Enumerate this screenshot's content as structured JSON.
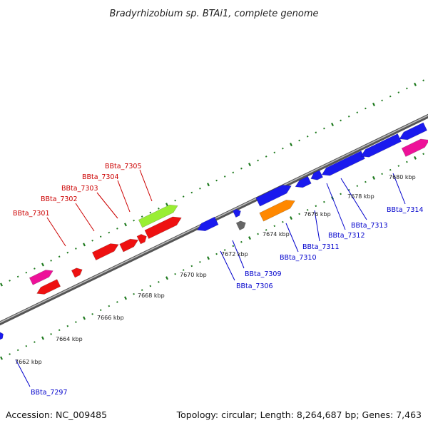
{
  "title": "Bradyrhizobium sp. BTAi1, complete genome",
  "footer": {
    "accession": "Accession: NC_009485",
    "summary": "Topology: circular; Length: 8,264,687 bp; Genes: 7,463"
  },
  "colors": {
    "backbone": "#888888",
    "tick": "#1e7a1e",
    "label_top": "#cc0000",
    "label_bottom": "#0000cc",
    "red": "#ee1111",
    "blue": "#1a1aee",
    "magenta": "#ee1199",
    "green": "#99ee33",
    "orange": "#ff8800",
    "gray": "#666666"
  },
  "scale": {
    "unit": "kbp",
    "labelled_ticks": [
      "7662 kbp",
      "7664 kbp",
      "7666 kbp",
      "7668 kbp",
      "7670 kbp",
      "7672 kbp",
      "7674 kbp",
      "7676 kbp",
      "7678 kbp",
      "7680 kbp"
    ]
  },
  "genes": [
    {
      "id": "BBta_7297",
      "strand": "bottom"
    },
    {
      "id": "BBta_7301",
      "strand": "top"
    },
    {
      "id": "BBta_7302",
      "strand": "top"
    },
    {
      "id": "BBta_7303",
      "strand": "top"
    },
    {
      "id": "BBta_7304",
      "strand": "top"
    },
    {
      "id": "BBta_7305",
      "strand": "top"
    },
    {
      "id": "BBta_7306",
      "strand": "bottom"
    },
    {
      "id": "BBta_7309",
      "strand": "bottom"
    },
    {
      "id": "BBta_7310",
      "strand": "bottom"
    },
    {
      "id": "BBta_7311",
      "strand": "bottom"
    },
    {
      "id": "BBta_7312",
      "strand": "bottom"
    },
    {
      "id": "BBta_7313",
      "strand": "bottom"
    },
    {
      "id": "BBta_7314",
      "strand": "bottom"
    }
  ]
}
